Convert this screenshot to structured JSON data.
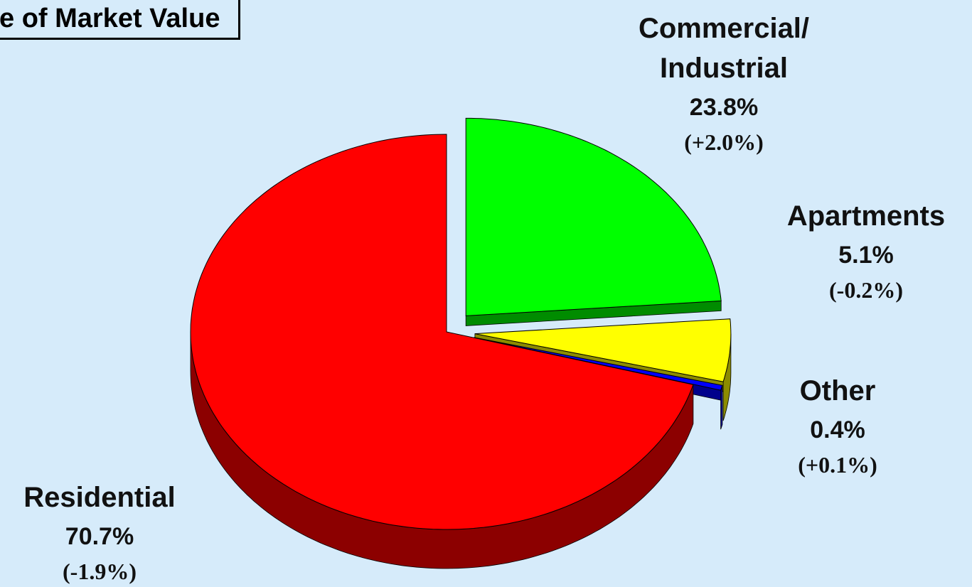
{
  "chart_data": {
    "type": "pie",
    "title": "e of Market Value",
    "categories": [
      "Residential",
      "Commercial/ Industrial",
      "Apartments",
      "Other"
    ],
    "values": [
      70.7,
      23.8,
      5.1,
      0.4
    ],
    "value_labels": [
      "70.7%",
      "23.8%",
      "5.1%",
      "0.4%"
    ],
    "change_labels": [
      "(-1.9%)",
      "(+2.0%)",
      "(-0.2%)",
      "(+0.1%)"
    ],
    "colors": [
      "#ff0000",
      "#00ff00",
      "#ffff00",
      "#0000ff"
    ]
  }
}
